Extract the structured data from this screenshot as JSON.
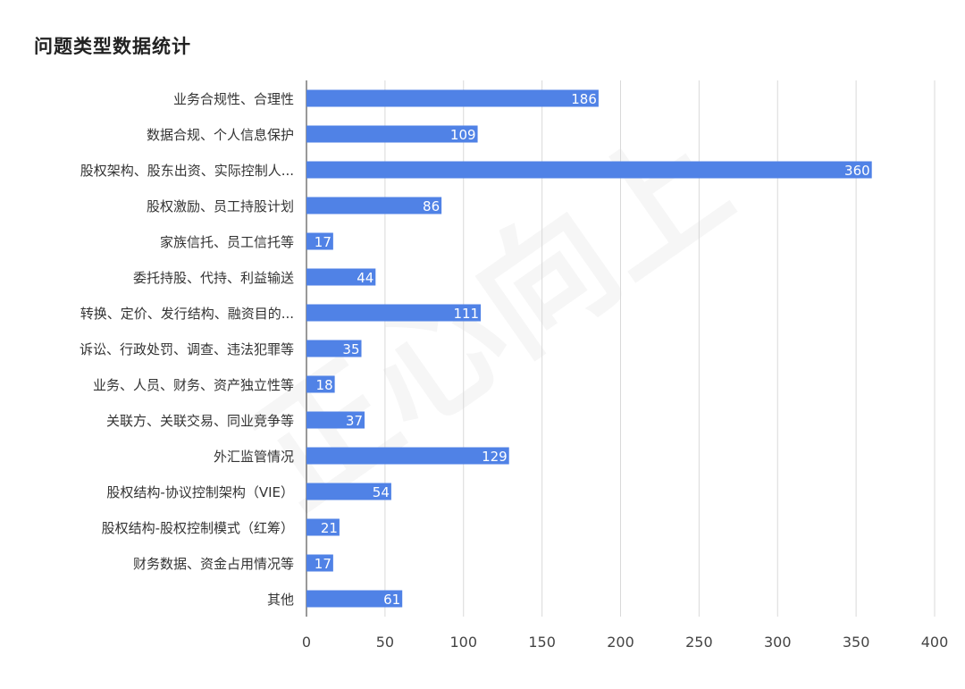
{
  "title": "问题类型数据统计",
  "watermark": "正心向上",
  "colors": {
    "bar": "#5082e6",
    "grid": "#d9d9d9",
    "text": "#333333"
  },
  "chart_data": {
    "type": "bar",
    "orientation": "horizontal",
    "title": "问题类型数据统计",
    "categories": [
      "业务合规性、合理性",
      "数据合规、个人信息保护",
      "股权架构、股东出资、实际控制人...",
      "股权激励、员工持股计划",
      "家族信托、员工信托等",
      "委托持股、代持、利益输送",
      "转换、定价、发行结构、融资目的...",
      "诉讼、行政处罚、调查、违法犯罪等",
      "业务、人员、财务、资产独立性等",
      "关联方、关联交易、同业竞争等",
      "外汇监管情况",
      "股权结构-协议控制架构（VIE）",
      "股权结构-股权控制模式（红筹）",
      "财务数据、资金占用情况等",
      "其他"
    ],
    "values": [
      186,
      109,
      360,
      86,
      17,
      44,
      111,
      35,
      18,
      37,
      129,
      54,
      21,
      17,
      61
    ],
    "xlim": [
      0,
      400
    ],
    "xticks": [
      0,
      50,
      100,
      150,
      200,
      250,
      300,
      350,
      400
    ],
    "grid": true,
    "data_labels": true,
    "legend": "none"
  }
}
